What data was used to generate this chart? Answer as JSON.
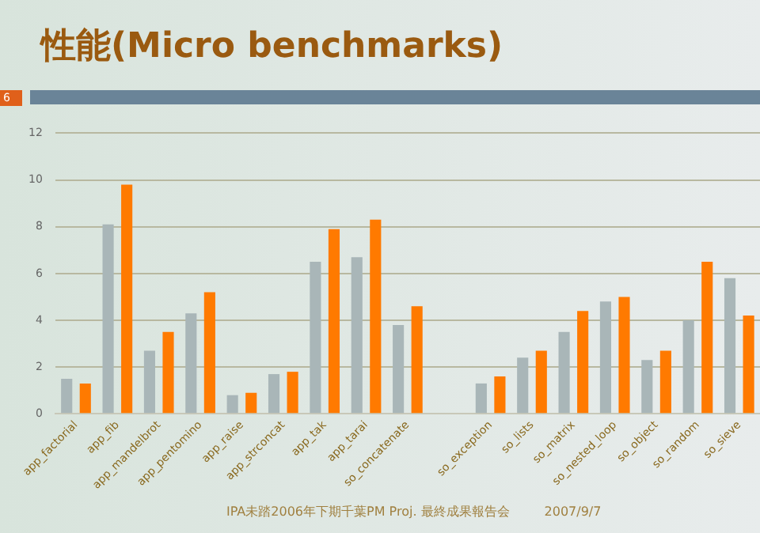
{
  "chart_data": {
    "type": "bar",
    "title": "性能(Micro benchmarks)",
    "categories": [
      "app_factorial",
      "app_fib",
      "app_mandelbrot",
      "app_pentomino",
      "app_raise",
      "app_strconcat",
      "app_tak",
      "app_tarai",
      "so_concatenate",
      null,
      "so_exception",
      "so_lists",
      "so_matrix",
      "so_nested_loop",
      "so_object",
      "so_random",
      "so_sieve"
    ],
    "series": [
      {
        "color": "#a9b6b8",
        "values": [
          1.5,
          8.1,
          2.7,
          4.3,
          0.8,
          1.7,
          6.5,
          6.7,
          3.8,
          null,
          1.3,
          2.4,
          3.5,
          4.8,
          2.3,
          4.0,
          5.8
        ]
      },
      {
        "color": "#ff7a00",
        "values": [
          1.3,
          9.8,
          3.5,
          5.2,
          0.9,
          1.8,
          7.9,
          8.3,
          4.6,
          null,
          1.6,
          2.7,
          4.4,
          5.0,
          2.7,
          6.5,
          4.2
        ]
      }
    ],
    "ylim": [
      0,
      12
    ],
    "yticks": [
      0,
      2,
      4,
      6,
      8,
      10,
      12
    ],
    "grid": "y",
    "legend": false,
    "annotations": [
      "6",
      "IPA未踏2006年下期千葉PM Proj. 最終成果報告会",
      "2007/9/7"
    ]
  }
}
